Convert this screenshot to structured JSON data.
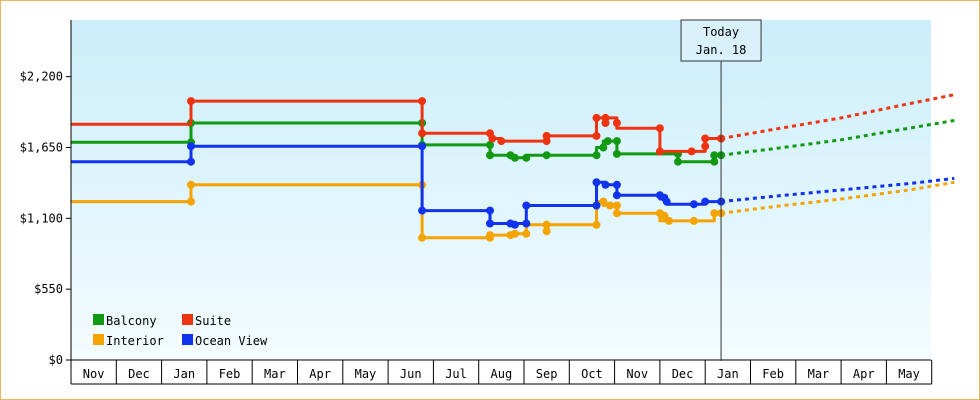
{
  "chart_data": {
    "type": "line",
    "title": "",
    "xlabel": "",
    "ylabel": "",
    "ylim": [
      0,
      2640
    ],
    "y_ticks": [
      {
        "value": 0,
        "label": "$0"
      },
      {
        "value": 550,
        "label": "$550"
      },
      {
        "value": 1100,
        "label": "$1,100"
      },
      {
        "value": 1650,
        "label": "$1,650"
      },
      {
        "value": 2200,
        "label": "$2,200"
      }
    ],
    "months": [
      "Nov",
      "Dec",
      "Jan",
      "Feb",
      "Mar",
      "Apr",
      "May",
      "Jun",
      "Jul",
      "Aug",
      "Sep",
      "Oct",
      "Nov",
      "Dec",
      "Jan",
      "Feb",
      "Mar",
      "Apr",
      "May"
    ],
    "today": {
      "line1": "Today",
      "line2": "Jan. 18",
      "x": 14.35
    },
    "legend": {
      "placement": "bottom-left"
    },
    "series": [
      {
        "name": "Balcony",
        "color": "#119911",
        "points": [
          [
            0,
            1690
          ],
          [
            2.65,
            1690
          ],
          [
            2.65,
            1840
          ],
          [
            7.75,
            1840
          ],
          [
            7.75,
            1670
          ],
          [
            9.25,
            1670
          ],
          [
            9.25,
            1590
          ],
          [
            9.7,
            1590
          ],
          [
            9.7,
            1570
          ],
          [
            10.05,
            1570
          ],
          [
            10.05,
            1590
          ],
          [
            11.6,
            1590
          ],
          [
            11.6,
            1650
          ],
          [
            11.75,
            1650
          ],
          [
            11.75,
            1700
          ],
          [
            12.05,
            1700
          ],
          [
            12.05,
            1600
          ],
          [
            13.4,
            1600
          ],
          [
            13.4,
            1540
          ],
          [
            14.2,
            1540
          ],
          [
            14.2,
            1590
          ],
          [
            14.35,
            1590
          ]
        ],
        "markers": [
          [
            2.65,
            1690
          ],
          [
            2.65,
            1840
          ],
          [
            7.75,
            1840
          ],
          [
            7.75,
            1670
          ],
          [
            9.25,
            1670
          ],
          [
            9.25,
            1590
          ],
          [
            9.7,
            1590
          ],
          [
            9.8,
            1570
          ],
          [
            10.05,
            1570
          ],
          [
            10.5,
            1590
          ],
          [
            11.6,
            1590
          ],
          [
            11.75,
            1650
          ],
          [
            11.85,
            1700
          ],
          [
            12.05,
            1700
          ],
          [
            12.05,
            1600
          ],
          [
            13.4,
            1600
          ],
          [
            13.4,
            1540
          ],
          [
            14.2,
            1540
          ],
          [
            14.2,
            1590
          ],
          [
            14.35,
            1590
          ]
        ],
        "forecast": [
          [
            14.35,
            1590
          ],
          [
            15.5,
            1640
          ],
          [
            17,
            1710
          ],
          [
            18.5,
            1800
          ],
          [
            19.5,
            1860
          ]
        ]
      },
      {
        "name": "Suite",
        "color": "#ee3311",
        "points": [
          [
            0,
            1830
          ],
          [
            2.65,
            1830
          ],
          [
            2.65,
            2010
          ],
          [
            7.75,
            2010
          ],
          [
            7.75,
            1760
          ],
          [
            9.25,
            1760
          ],
          [
            9.25,
            1720
          ],
          [
            9.5,
            1720
          ],
          [
            9.5,
            1700
          ],
          [
            10.5,
            1700
          ],
          [
            10.5,
            1740
          ],
          [
            11.6,
            1740
          ],
          [
            11.6,
            1880
          ],
          [
            12.05,
            1880
          ],
          [
            12.05,
            1800
          ],
          [
            13.0,
            1800
          ],
          [
            13.0,
            1620
          ],
          [
            14.0,
            1620
          ],
          [
            14.0,
            1720
          ],
          [
            14.35,
            1720
          ]
        ],
        "markers": [
          [
            2.65,
            2010
          ],
          [
            7.75,
            2010
          ],
          [
            7.75,
            1760
          ],
          [
            9.25,
            1760
          ],
          [
            9.3,
            1720
          ],
          [
            9.5,
            1700
          ],
          [
            10.5,
            1700
          ],
          [
            10.5,
            1740
          ],
          [
            11.6,
            1740
          ],
          [
            11.6,
            1880
          ],
          [
            11.8,
            1880
          ],
          [
            11.8,
            1840
          ],
          [
            12.05,
            1840
          ],
          [
            13.0,
            1800
          ],
          [
            13.0,
            1620
          ],
          [
            13.7,
            1620
          ],
          [
            14.0,
            1660
          ],
          [
            14.0,
            1720
          ],
          [
            14.35,
            1720
          ]
        ],
        "forecast": [
          [
            14.35,
            1720
          ],
          [
            15.5,
            1790
          ],
          [
            17,
            1880
          ],
          [
            18.5,
            1990
          ],
          [
            19.5,
            2060
          ]
        ]
      },
      {
        "name": "Interior",
        "color": "#f5a300",
        "points": [
          [
            0,
            1230
          ],
          [
            2.65,
            1230
          ],
          [
            2.65,
            1360
          ],
          [
            7.75,
            1360
          ],
          [
            7.75,
            950
          ],
          [
            9.25,
            950
          ],
          [
            9.25,
            970
          ],
          [
            9.7,
            970
          ],
          [
            9.7,
            980
          ],
          [
            10.05,
            980
          ],
          [
            10.05,
            1050
          ],
          [
            11.6,
            1050
          ],
          [
            11.6,
            1230
          ],
          [
            11.75,
            1230
          ],
          [
            11.75,
            1200
          ],
          [
            12.05,
            1200
          ],
          [
            12.05,
            1140
          ],
          [
            13.0,
            1140
          ],
          [
            13.0,
            1080
          ],
          [
            13.75,
            1080
          ],
          [
            14.2,
            1080
          ],
          [
            14.2,
            1140
          ],
          [
            14.35,
            1140
          ]
        ],
        "markers": [
          [
            2.65,
            1230
          ],
          [
            2.65,
            1360
          ],
          [
            7.75,
            1360
          ],
          [
            7.75,
            950
          ],
          [
            9.25,
            950
          ],
          [
            9.25,
            970
          ],
          [
            9.7,
            970
          ],
          [
            9.8,
            980
          ],
          [
            10.05,
            980
          ],
          [
            10.5,
            1000
          ],
          [
            10.5,
            1050
          ],
          [
            11.6,
            1050
          ],
          [
            11.75,
            1230
          ],
          [
            11.9,
            1200
          ],
          [
            12.05,
            1200
          ],
          [
            12.05,
            1140
          ],
          [
            13.0,
            1140
          ],
          [
            13.1,
            1120
          ],
          [
            13.2,
            1080
          ],
          [
            13.75,
            1080
          ],
          [
            14.2,
            1140
          ],
          [
            14.35,
            1140
          ]
        ],
        "forecast": [
          [
            14.35,
            1140
          ],
          [
            15.5,
            1190
          ],
          [
            17,
            1250
          ],
          [
            18.5,
            1320
          ],
          [
            19.5,
            1380
          ]
        ]
      },
      {
        "name": "Ocean View",
        "color": "#1133ee",
        "points": [
          [
            0,
            1540
          ],
          [
            2.65,
            1540
          ],
          [
            2.65,
            1660
          ],
          [
            7.75,
            1660
          ],
          [
            7.75,
            1160
          ],
          [
            9.25,
            1160
          ],
          [
            9.25,
            1060
          ],
          [
            10.05,
            1060
          ],
          [
            10.05,
            1200
          ],
          [
            11.6,
            1200
          ],
          [
            11.6,
            1380
          ],
          [
            11.8,
            1380
          ],
          [
            11.8,
            1360
          ],
          [
            12.05,
            1360
          ],
          [
            12.05,
            1280
          ],
          [
            13.0,
            1280
          ],
          [
            13.0,
            1250
          ],
          [
            13.15,
            1250
          ],
          [
            13.15,
            1210
          ],
          [
            13.75,
            1210
          ],
          [
            14.0,
            1210
          ],
          [
            14.0,
            1230
          ],
          [
            14.35,
            1230
          ]
        ],
        "markers": [
          [
            2.65,
            1540
          ],
          [
            2.65,
            1660
          ],
          [
            7.75,
            1660
          ],
          [
            7.75,
            1160
          ],
          [
            9.25,
            1160
          ],
          [
            9.25,
            1060
          ],
          [
            9.7,
            1060
          ],
          [
            9.8,
            1050
          ],
          [
            10.05,
            1060
          ],
          [
            10.05,
            1200
          ],
          [
            11.6,
            1200
          ],
          [
            11.6,
            1380
          ],
          [
            11.8,
            1360
          ],
          [
            12.05,
            1360
          ],
          [
            12.05,
            1280
          ],
          [
            13.0,
            1280
          ],
          [
            13.1,
            1260
          ],
          [
            13.15,
            1230
          ],
          [
            13.75,
            1210
          ],
          [
            14.0,
            1230
          ],
          [
            14.35,
            1230
          ]
        ],
        "forecast": [
          [
            14.35,
            1230
          ],
          [
            15.5,
            1270
          ],
          [
            17,
            1320
          ],
          [
            18.5,
            1370
          ],
          [
            19.5,
            1410
          ]
        ]
      }
    ]
  }
}
